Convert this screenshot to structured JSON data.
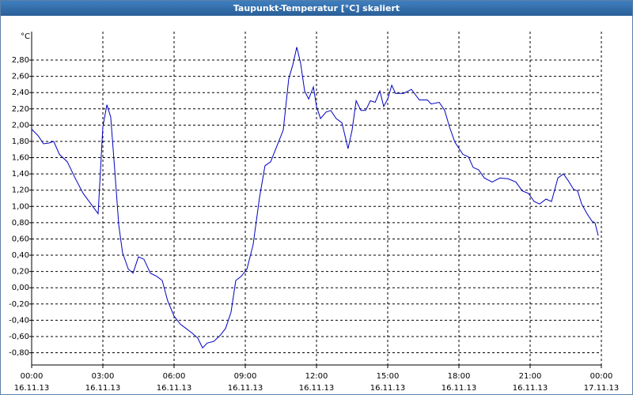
{
  "chart_data": {
    "type": "line",
    "title": "Taupunkt-Temperatur [°C] skaliert",
    "y_unit": "°C",
    "color": "#0000c0",
    "grid": true,
    "xlim": [
      0,
      24
    ],
    "ylim": [
      -0.95,
      3.15
    ],
    "xticks": [
      {
        "value": 0,
        "label": "00:00"
      },
      {
        "value": 3,
        "label": "03:00"
      },
      {
        "value": 6,
        "label": "06:00"
      },
      {
        "value": 9,
        "label": "09:00"
      },
      {
        "value": 12,
        "label": "12:00"
      },
      {
        "value": 15,
        "label": "15:00"
      },
      {
        "value": 18,
        "label": "18:00"
      },
      {
        "value": 21,
        "label": "21:00"
      },
      {
        "value": 24,
        "label": "00:00"
      }
    ],
    "xtick_dates": [
      "16.11.13",
      "16.11.13",
      "16.11.13",
      "16.11.13",
      "16.11.13",
      "16.11.13",
      "16.11.13",
      "16.11.13",
      "17.11.13"
    ],
    "yticks": [
      {
        "value": -0.8,
        "label": "-0,80"
      },
      {
        "value": -0.6,
        "label": "-0,60"
      },
      {
        "value": -0.4,
        "label": "-0,40"
      },
      {
        "value": -0.2,
        "label": "-0,20"
      },
      {
        "value": 0,
        "label": "0,00"
      },
      {
        "value": 0.2,
        "label": "0,20"
      },
      {
        "value": 0.4,
        "label": "0,40"
      },
      {
        "value": 0.6,
        "label": "0,60"
      },
      {
        "value": 0.8,
        "label": "0,80"
      },
      {
        "value": 1.0,
        "label": "1,00"
      },
      {
        "value": 1.2,
        "label": "1,20"
      },
      {
        "value": 1.4,
        "label": "1,40"
      },
      {
        "value": 1.6,
        "label": "1,60"
      },
      {
        "value": 1.8,
        "label": "1,80"
      },
      {
        "value": 2.0,
        "label": "2,00"
      },
      {
        "value": 2.2,
        "label": "2,20"
      },
      {
        "value": 2.4,
        "label": "2,40"
      },
      {
        "value": 2.6,
        "label": "2,60"
      },
      {
        "value": 2.8,
        "label": "2,80"
      }
    ],
    "x": [
      0,
      0.27,
      0.5,
      0.73,
      0.93,
      1.17,
      1.5,
      1.83,
      2.17,
      2.5,
      2.8,
      3.0,
      3.17,
      3.33,
      3.5,
      3.67,
      3.83,
      4.07,
      4.27,
      4.5,
      4.73,
      5.0,
      5.27,
      5.5,
      5.73,
      6.0,
      6.27,
      6.5,
      6.77,
      7.0,
      7.2,
      7.4,
      7.67,
      7.93,
      8.17,
      8.4,
      8.6,
      8.83,
      9.07,
      9.33,
      9.6,
      9.83,
      10.07,
      10.33,
      10.6,
      10.83,
      11.0,
      11.17,
      11.33,
      11.5,
      11.67,
      11.87,
      12.0,
      12.17,
      12.4,
      12.6,
      12.83,
      13.07,
      13.33,
      13.5,
      13.67,
      13.87,
      14.07,
      14.27,
      14.47,
      14.67,
      14.83,
      15.0,
      15.17,
      15.33,
      15.67,
      16.0,
      16.33,
      16.67,
      16.83,
      17.17,
      17.4,
      17.6,
      17.83,
      18.17,
      18.4,
      18.6,
      18.83,
      19.07,
      19.4,
      19.73,
      20.07,
      20.4,
      20.67,
      20.93,
      21.17,
      21.4,
      21.67,
      21.9,
      22.17,
      22.4,
      22.6,
      22.83,
      23.0,
      23.17,
      23.4,
      23.6,
      23.73,
      23.87
    ],
    "values": [
      1.95,
      1.87,
      1.77,
      1.78,
      1.8,
      1.64,
      1.55,
      1.35,
      1.16,
      1.03,
      0.91,
      1.98,
      2.25,
      2.1,
      1.45,
      0.77,
      0.43,
      0.23,
      0.18,
      0.38,
      0.35,
      0.18,
      0.14,
      0.09,
      -0.16,
      -0.35,
      -0.45,
      -0.5,
      -0.56,
      -0.62,
      -0.74,
      -0.68,
      -0.66,
      -0.59,
      -0.5,
      -0.3,
      0.09,
      0.14,
      0.23,
      0.53,
      1.11,
      1.5,
      1.55,
      1.74,
      1.94,
      2.57,
      2.74,
      2.96,
      2.76,
      2.42,
      2.32,
      2.47,
      2.23,
      2.08,
      2.16,
      2.18,
      2.08,
      2.03,
      1.71,
      1.94,
      2.3,
      2.18,
      2.18,
      2.3,
      2.28,
      2.42,
      2.23,
      2.32,
      2.49,
      2.39,
      2.39,
      2.44,
      2.31,
      2.31,
      2.26,
      2.28,
      2.18,
      1.98,
      1.79,
      1.64,
      1.61,
      1.48,
      1.45,
      1.35,
      1.3,
      1.35,
      1.34,
      1.3,
      1.19,
      1.16,
      1.06,
      1.03,
      1.09,
      1.06,
      1.35,
      1.4,
      1.32,
      1.21,
      1.19,
      1.03,
      0.91,
      0.82,
      0.8,
      0.64
    ]
  }
}
